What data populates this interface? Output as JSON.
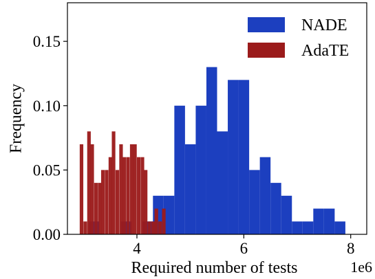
{
  "chart_data": {
    "type": "bar",
    "subtype": "histogram",
    "xlabel": "Required number of tests",
    "x_offset_label": "1e6",
    "ylabel": "Frequency",
    "xlim": [
      2.7,
      8.3
    ],
    "ylim": [
      0,
      0.18
    ],
    "xticks": [
      {
        "value": 4,
        "label": "4"
      },
      {
        "value": 6,
        "label": "6"
      },
      {
        "value": 8,
        "label": "8"
      }
    ],
    "yticks": [
      {
        "value": 0.0,
        "label": "0.00"
      },
      {
        "value": 0.05,
        "label": "0.05"
      },
      {
        "value": 0.1,
        "label": "0.10"
      },
      {
        "value": 0.15,
        "label": "0.15"
      }
    ],
    "grid": false,
    "legend_position": "top-right",
    "series": [
      {
        "name": "NADE",
        "color": "#1c3fbf",
        "bin_width": 0.2,
        "bins": [
          {
            "start": 3.1,
            "value": 0.01
          },
          {
            "start": 3.3,
            "value": 0.0
          },
          {
            "start": 3.5,
            "value": 0.0
          },
          {
            "start": 3.7,
            "value": 0.01
          },
          {
            "start": 3.9,
            "value": 0.0
          },
          {
            "start": 4.1,
            "value": 0.01
          },
          {
            "start": 4.3,
            "value": 0.03
          },
          {
            "start": 4.5,
            "value": 0.03
          },
          {
            "start": 4.7,
            "value": 0.1
          },
          {
            "start": 4.9,
            "value": 0.07
          },
          {
            "start": 5.1,
            "value": 0.1
          },
          {
            "start": 5.3,
            "value": 0.13
          },
          {
            "start": 5.5,
            "value": 0.08
          },
          {
            "start": 5.7,
            "value": 0.12
          },
          {
            "start": 5.9,
            "value": 0.12
          },
          {
            "start": 6.1,
            "value": 0.05
          },
          {
            "start": 6.3,
            "value": 0.06
          },
          {
            "start": 6.5,
            "value": 0.04
          },
          {
            "start": 6.7,
            "value": 0.03
          },
          {
            "start": 6.9,
            "value": 0.01
          },
          {
            "start": 7.1,
            "value": 0.01
          },
          {
            "start": 7.3,
            "value": 0.02
          },
          {
            "start": 7.5,
            "value": 0.02
          },
          {
            "start": 7.7,
            "value": 0.01
          }
        ]
      },
      {
        "name": "AdaTE",
        "color": "#9b1b1b",
        "bin_width": 0.0667,
        "bins": [
          {
            "start": 2.93,
            "value": 0.07
          },
          {
            "start": 3.0,
            "value": 0.01
          },
          {
            "start": 3.07,
            "value": 0.08
          },
          {
            "start": 3.13,
            "value": 0.07
          },
          {
            "start": 3.2,
            "value": 0.04
          },
          {
            "start": 3.27,
            "value": 0.04
          },
          {
            "start": 3.33,
            "value": 0.05
          },
          {
            "start": 3.4,
            "value": 0.05
          },
          {
            "start": 3.47,
            "value": 0.06
          },
          {
            "start": 3.53,
            "value": 0.08
          },
          {
            "start": 3.6,
            "value": 0.05
          },
          {
            "start": 3.67,
            "value": 0.07
          },
          {
            "start": 3.73,
            "value": 0.06
          },
          {
            "start": 3.8,
            "value": 0.06
          },
          {
            "start": 3.87,
            "value": 0.07
          },
          {
            "start": 3.93,
            "value": 0.07
          },
          {
            "start": 4.0,
            "value": 0.06
          },
          {
            "start": 4.07,
            "value": 0.06
          },
          {
            "start": 4.13,
            "value": 0.05
          },
          {
            "start": 4.2,
            "value": 0.01
          },
          {
            "start": 4.27,
            "value": 0.01
          },
          {
            "start": 4.33,
            "value": 0.02
          },
          {
            "start": 4.4,
            "value": 0.01
          },
          {
            "start": 4.47,
            "value": 0.02
          }
        ]
      }
    ]
  }
}
